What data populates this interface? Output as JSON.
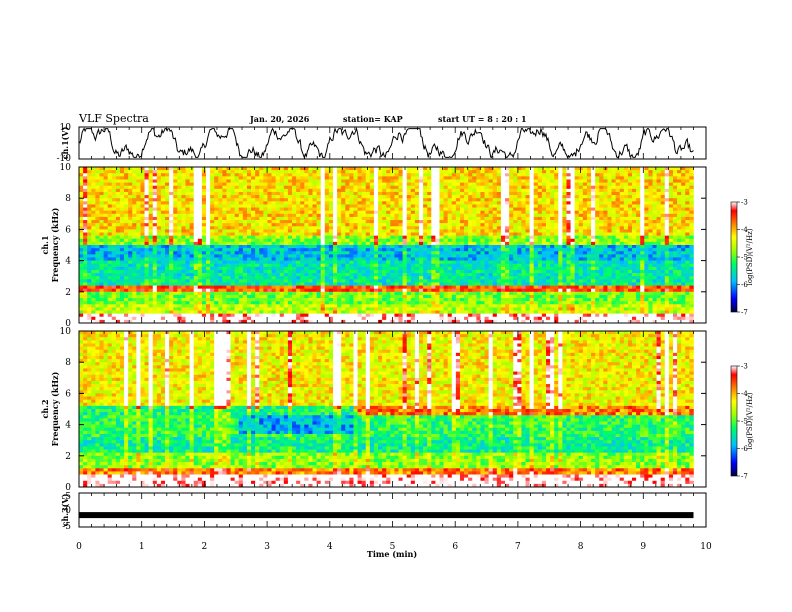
{
  "header": {
    "title": "VLF Spectra",
    "date": "Jan. 20, 2026",
    "station": "station= KAP",
    "start_ut": "start  UT  =   8  : 20 : 1"
  },
  "colors": {
    "background": "#ffffff",
    "axis": "#000000",
    "trace": "#000000"
  },
  "chart_data": [
    {
      "type": "line",
      "panel": "ch1-waveform",
      "ylabel": "ch.1(V)",
      "ylim": [
        -10,
        10
      ],
      "yticks": [
        10,
        -10
      ],
      "x_range_min": [
        0,
        9.8
      ],
      "note": "noisy voltage trace fluctuating roughly between -8 and 7 V"
    },
    {
      "type": "heatmap",
      "panel": "ch1-spectrogram",
      "ylabel_line1": "ch.1",
      "ylabel_line2": "Frequency (kHz)",
      "ylim": [
        0,
        10
      ],
      "yticks": [
        0,
        2,
        4,
        6,
        8,
        10
      ],
      "colorbar": {
        "label": "log(PSD)(V²/Hz)",
        "range": [
          -7,
          -3
        ],
        "ticks": [
          "-3",
          "-4",
          "-5",
          "-6",
          "-7"
        ],
        "colormap": [
          "#000040",
          "#0000ff",
          "#00c0ff",
          "#00ff60",
          "#a0ff00",
          "#ffff00",
          "#ff8000",
          "#ff0000",
          "#ffffff"
        ]
      },
      "bands_khz": [
        {
          "from": 0,
          "to": 0.6,
          "level": -2.9
        },
        {
          "from": 0.6,
          "to": 1.2,
          "level": -4.6
        },
        {
          "from": 1.2,
          "to": 2.0,
          "level": -4.9
        },
        {
          "from": 2.0,
          "to": 2.4,
          "level": -3.6
        },
        {
          "from": 2.4,
          "to": 4.0,
          "level": -5.5
        },
        {
          "from": 4.0,
          "to": 5.0,
          "level": -5.8
        },
        {
          "from": 5.0,
          "to": 5.6,
          "level": -4.8
        },
        {
          "from": 5.6,
          "to": 10.0,
          "level": -4.2
        }
      ]
    },
    {
      "type": "heatmap",
      "panel": "ch2-spectrogram",
      "ylabel_line1": "ch.2",
      "ylabel_line2": "Frequency (kHz)",
      "ylim": [
        0,
        10
      ],
      "yticks": [
        0,
        2,
        4,
        6,
        8,
        10
      ],
      "colorbar": {
        "label": "log(PSD)(V²/Hz)",
        "range": [
          -7,
          -3
        ],
        "ticks": [
          "-3",
          "-4",
          "-5",
          "-6",
          "-7"
        ]
      },
      "bands_khz": [
        {
          "from": 0,
          "to": 0.7,
          "level": -2.9
        },
        {
          "from": 0.7,
          "to": 1.2,
          "level": -3.8
        },
        {
          "from": 1.2,
          "to": 2.2,
          "level": -4.8
        },
        {
          "from": 2.2,
          "to": 3.3,
          "level": -5.4
        },
        {
          "from": 3.3,
          "to": 4.6,
          "level": -5.2
        },
        {
          "from": 4.6,
          "to": 5.2,
          "level": -3.8
        },
        {
          "from": 5.2,
          "to": 10.0,
          "level": -4.3
        }
      ]
    },
    {
      "type": "line",
      "panel": "ch3-waveform",
      "ylabel": "ch.3(V)",
      "ylim": [
        -5,
        5
      ],
      "yticks": [
        5,
        0,
        -5
      ],
      "constant_value": -1.5,
      "x_range_min": [
        0,
        9.8
      ]
    },
    {
      "type": "axis",
      "xlabel": "Time  (min)",
      "xlim": [
        0,
        10
      ],
      "xticks": [
        "0",
        "1",
        "2",
        "3",
        "4",
        "5",
        "6",
        "7",
        "8",
        "9",
        "10"
      ]
    }
  ]
}
